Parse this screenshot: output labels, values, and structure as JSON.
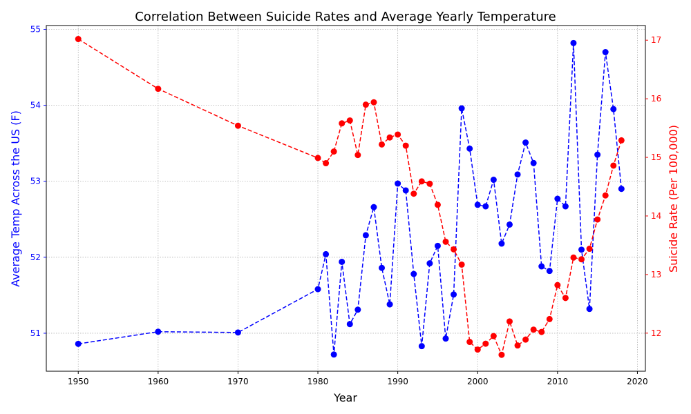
{
  "chart_data": {
    "type": "line",
    "title": "Correlation Between Suicide Rates and Average Yearly Temperature",
    "xlabel": "Year",
    "ylabel_left": "Average Temp Across the US (F)",
    "ylabel_right": "Suicide Rate (Per 100,000)",
    "xlim": [
      1946,
      2021
    ],
    "ylim_left": [
      50.5,
      55.05
    ],
    "ylim_right": [
      11.35,
      17.25
    ],
    "x_ticks": [
      "1950",
      "1960",
      "1970",
      "1980",
      "1990",
      "2000",
      "2010",
      "2020"
    ],
    "y_left_ticks": [
      "51",
      "52",
      "53",
      "54",
      "55"
    ],
    "y_right_ticks": [
      "12",
      "13",
      "14",
      "15",
      "16",
      "17"
    ],
    "grid": true,
    "colors": {
      "left_series": "#0000ff",
      "right_series": "#ff0000",
      "axis": "#000000"
    },
    "series": [
      {
        "axis": "left",
        "color": "#0000ff",
        "x": [
          1950,
          1960,
          1970,
          1980,
          1981,
          1982,
          1983,
          1984,
          1985,
          1986,
          1987,
          1988,
          1989,
          1990,
          1991,
          1992,
          1993,
          1994,
          1995,
          1996,
          1997,
          1998,
          1999,
          2000,
          2001,
          2002,
          2003,
          2004,
          2005,
          2006,
          2007,
          2008,
          2009,
          2010,
          2011,
          2012,
          2013,
          2014,
          2015,
          2016,
          2017,
          2018
        ],
        "values": [
          50.86,
          51.02,
          51.01,
          51.58,
          52.04,
          50.72,
          51.94,
          51.12,
          51.31,
          52.29,
          52.66,
          51.86,
          51.38,
          52.97,
          52.88,
          51.78,
          50.83,
          51.92,
          52.15,
          50.93,
          51.51,
          53.96,
          53.43,
          52.69,
          52.67,
          53.02,
          52.18,
          52.43,
          53.09,
          53.51,
          53.24,
          51.88,
          51.82,
          52.77,
          52.67,
          54.82,
          52.1,
          51.32,
          53.35,
          54.7,
          53.95,
          52.9
        ]
      },
      {
        "axis": "right",
        "color": "#ff0000",
        "x": [
          1950,
          1960,
          1970,
          1980,
          1981,
          1982,
          1983,
          1984,
          1985,
          1986,
          1987,
          1988,
          1989,
          1990,
          1991,
          1992,
          1993,
          1994,
          1995,
          1996,
          1997,
          1998,
          1999,
          2000,
          2001,
          2002,
          2003,
          2004,
          2005,
          2006,
          2007,
          2008,
          2009,
          2010,
          2011,
          2012,
          2013,
          2014,
          2015,
          2016,
          2017,
          2018
        ],
        "values": [
          17.02,
          16.17,
          15.54,
          14.99,
          14.9,
          15.1,
          15.58,
          15.63,
          15.04,
          15.9,
          15.94,
          15.22,
          15.34,
          15.39,
          15.2,
          14.38,
          14.59,
          14.55,
          14.19,
          13.56,
          13.43,
          13.17,
          11.85,
          11.72,
          11.82,
          11.95,
          11.63,
          12.2,
          11.79,
          11.89,
          12.06,
          12.02,
          12.24,
          12.82,
          12.6,
          13.29,
          13.26,
          13.44,
          13.94,
          14.35,
          14.86,
          15.29
        ]
      }
    ]
  }
}
